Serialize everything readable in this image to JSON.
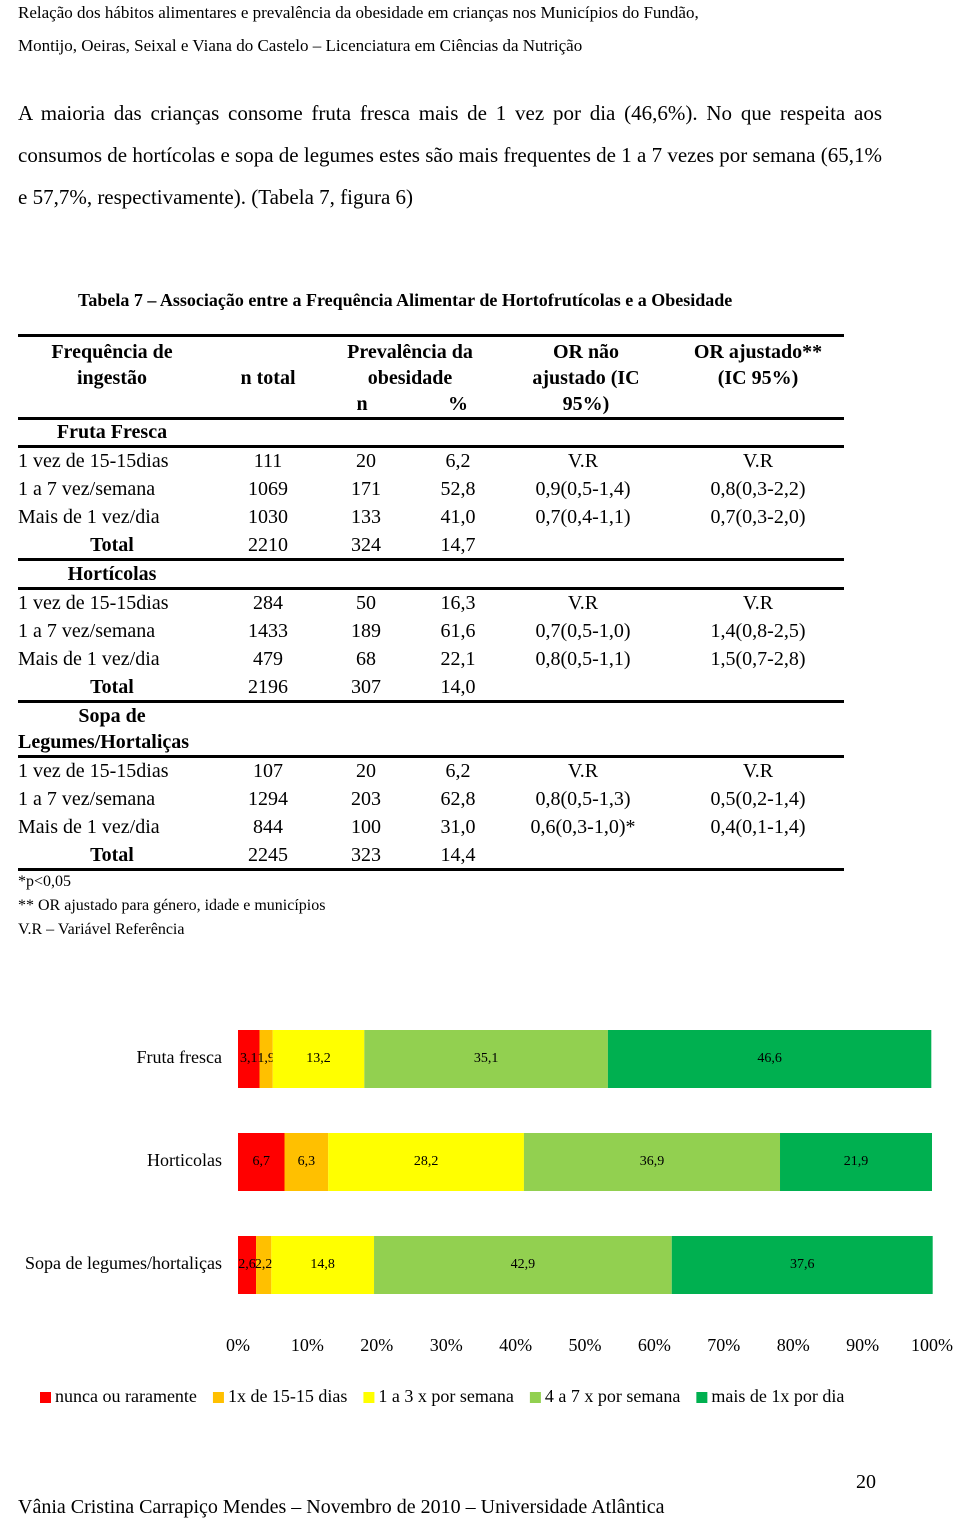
{
  "header": {
    "lines": [
      "Relação dos hábitos alimentares e prevalência da obesidade em crianças nos Municípios do Fundão,",
      "Montijo, Oeiras, Seixal e Viana do Castelo – Licenciatura em Ciências da Nutrição"
    ]
  },
  "paragraph": "A maioria das crianças consome fruta fresca mais de 1 vez por dia (46,6%). No que respeita aos consumos de hortícolas e sopa de legumes estes são mais frequentes de 1 a 7 vezes por semana (65,1% e 57,7%, respectivamente). (Tabela 7, figura 6)",
  "table": {
    "caption": "Tabela 7 – Associação entre a Frequência Alimentar de Hortofrutícolas e a Obesidade",
    "headers": {
      "freq": [
        "Frequência de",
        "ingestão"
      ],
      "ntotal": "n total",
      "prev": [
        "Prevalência da",
        "obesidade"
      ],
      "n": "n",
      "pct": "%",
      "or_na": [
        "OR não",
        "ajustado (IC",
        "95%)"
      ],
      "or_aj": [
        "OR ajustado**",
        "(IC 95%)"
      ]
    },
    "groups": [
      {
        "title": [
          "Fruta Fresca"
        ],
        "rows": [
          [
            "1 vez de 15-15dias",
            "111",
            "20",
            "6,2",
            "V.R",
            "V.R"
          ],
          [
            "1 a 7 vez/semana",
            "1069",
            "171",
            "52,8",
            "0,9(0,5-1,4)",
            "0,8(0,3-2,2)"
          ],
          [
            "Mais de 1 vez/dia",
            "1030",
            "133",
            "41,0",
            "0,7(0,4-1,1)",
            "0,7(0,3-2,0)"
          ]
        ],
        "total": [
          "Total",
          "2210",
          "324",
          "14,7"
        ]
      },
      {
        "title": [
          "Hortícolas"
        ],
        "rows": [
          [
            "1 vez de 15-15dias",
            "284",
            "50",
            "16,3",
            "V.R",
            "V.R"
          ],
          [
            "1 a 7 vez/semana",
            "1433",
            "189",
            "61,6",
            "0,7(0,5-1,0)",
            "1,4(0,8-2,5)"
          ],
          [
            "Mais de 1 vez/dia",
            "479",
            "68",
            "22,1",
            "0,8(0,5-1,1)",
            "1,5(0,7-2,8)"
          ]
        ],
        "total": [
          "Total",
          "2196",
          "307",
          "14,0"
        ]
      },
      {
        "title": [
          "Sopa de",
          "Legumes/Hortaliças"
        ],
        "rows": [
          [
            "1 vez de 15-15dias",
            "107",
            "20",
            "6,2",
            "V.R",
            "V.R"
          ],
          [
            "1 a 7 vez/semana",
            "1294",
            "203",
            "62,8",
            "0,8(0,5-1,3)",
            "0,5(0,2-1,4)"
          ],
          [
            "Mais de 1 vez/dia",
            "844",
            "100",
            "31,0",
            "0,6(0,3-1,0)*",
            "0,4(0,1-1,4)"
          ]
        ],
        "total": [
          "Total",
          "2245",
          "323",
          "14,4"
        ]
      }
    ],
    "notes": [
      "*p<0,05",
      "** OR ajustado para género, idade e municípios",
      "V.R – Variável Referência"
    ]
  },
  "chart_data": {
    "type": "stacked-bar-horizontal",
    "categories": [
      "Fruta fresca",
      "Horticolas",
      "Sopa de legumes/hortaliças"
    ],
    "series": [
      {
        "name": "nunca ou raramente",
        "color": "#ff0000",
        "values": [
          3.1,
          6.7,
          2.6
        ],
        "value_labels": [
          "3,1",
          "6,7",
          "2,6"
        ]
      },
      {
        "name": "1x de 15-15 dias",
        "color": "#ffc000",
        "values": [
          1.9,
          6.3,
          2.2
        ],
        "value_labels": [
          "1,9",
          "6,3",
          "2,2"
        ]
      },
      {
        "name": "1 a 3 x por semana",
        "color": "#ffff00",
        "values": [
          13.2,
          28.2,
          14.8
        ],
        "value_labels": [
          "13,2",
          "28,2",
          "14,8"
        ]
      },
      {
        "name": "4 a 7 x por semana",
        "color": "#92d050",
        "values": [
          35.1,
          36.9,
          42.9
        ],
        "value_labels": [
          "35,1",
          "36,9",
          "42,9"
        ]
      },
      {
        "name": "mais de 1x por dia",
        "color": "#00b050",
        "values": [
          46.6,
          21.9,
          37.6
        ],
        "value_labels": [
          "46,6",
          "21,9",
          "37,6"
        ]
      }
    ],
    "xlim": [
      0,
      100
    ],
    "xticks": [
      {
        "value": 0,
        "label": "0%"
      },
      {
        "value": 10,
        "label": "10%"
      },
      {
        "value": 20,
        "label": "20%"
      },
      {
        "value": 30,
        "label": "30%"
      },
      {
        "value": 40,
        "label": "40%"
      },
      {
        "value": 50,
        "label": "50%"
      },
      {
        "value": 60,
        "label": "60%"
      },
      {
        "value": 70,
        "label": "70%"
      },
      {
        "value": 80,
        "label": "80%"
      },
      {
        "value": 90,
        "label": "90%"
      },
      {
        "value": 100,
        "label": "100%"
      }
    ],
    "legend": "bottom"
  },
  "footer": {
    "page": "20",
    "text": "Vânia Cristina Carrapiço Mendes – Novembro de 2010 – Universidade Atlântica"
  }
}
